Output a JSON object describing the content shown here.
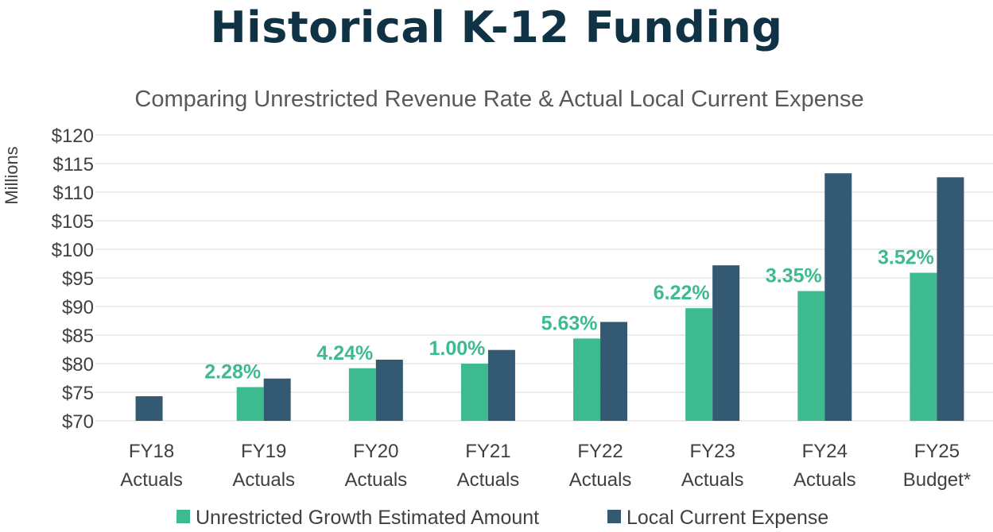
{
  "page": {
    "title": "Historical K-12 Funding"
  },
  "chart_data": {
    "type": "bar",
    "title": "Comparing Unrestricted Revenue Rate & Actual Local Current Expense",
    "ylabel": "Millions",
    "xlabel": "",
    "ylim": [
      70,
      120
    ],
    "yticks": [
      "$70",
      "$75",
      "$80",
      "$85",
      "$90",
      "$95",
      "$100",
      "$105",
      "$110",
      "$115",
      "$120"
    ],
    "ytick_values": [
      70,
      75,
      80,
      85,
      90,
      95,
      100,
      105,
      110,
      115,
      120
    ],
    "grid": true,
    "legend_position": "bottom",
    "categories": [
      [
        "FY18",
        "Actuals"
      ],
      [
        "FY19",
        "Actuals"
      ],
      [
        "FY20",
        "Actuals"
      ],
      [
        "FY21",
        "Actuals"
      ],
      [
        "FY22",
        "Actuals"
      ],
      [
        "FY23",
        "Actuals"
      ],
      [
        "FY24",
        "Actuals"
      ],
      [
        "FY25",
        "Budget*"
      ]
    ],
    "series": [
      {
        "name": "Unrestricted Growth Estimated Amount",
        "color": "#3dba8f",
        "values": [
          null,
          75.9,
          79.2,
          80.0,
          84.4,
          89.7,
          92.7,
          95.9
        ],
        "data_labels": [
          "",
          "2.28%",
          "4.24%",
          "1.00%",
          "5.63%",
          "6.22%",
          "3.35%",
          "3.52%"
        ]
      },
      {
        "name": "Local Current Expense",
        "color": "#335a72",
        "values": [
          74.3,
          77.4,
          80.7,
          82.4,
          87.3,
          97.2,
          113.3,
          112.6
        ]
      }
    ],
    "label_color": "#3dba8f"
  }
}
